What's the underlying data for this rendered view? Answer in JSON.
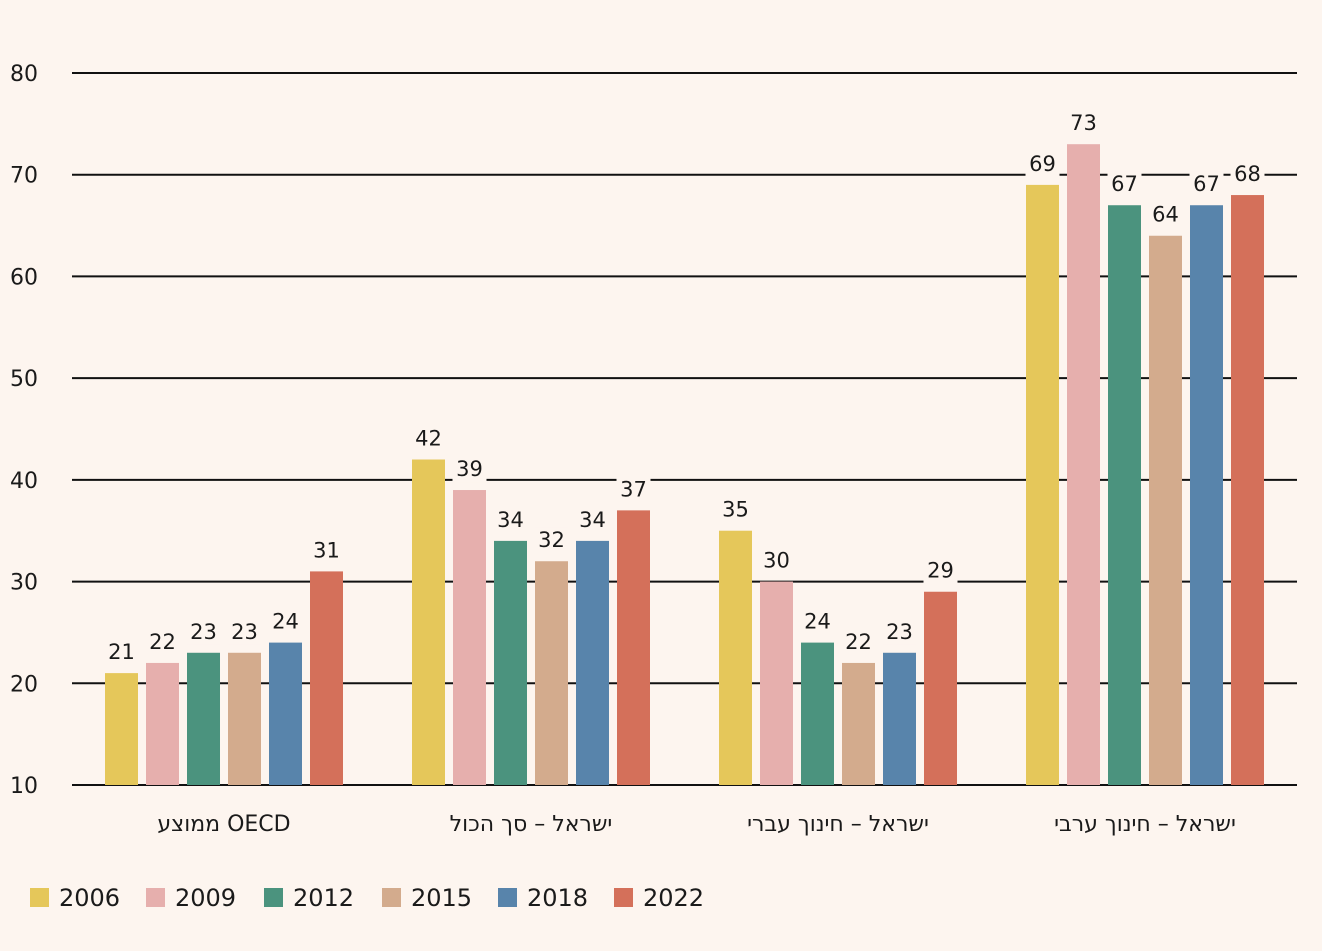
{
  "chart_data": {
    "type": "bar",
    "ylim": [
      10,
      80
    ],
    "yticks": [
      10,
      20,
      30,
      40,
      50,
      60,
      70,
      80
    ],
    "grid": true,
    "legend_position": "bottom-left",
    "categories": [
      "ממוצע OECD",
      "ישראל – סך הכול",
      "ישראל – חינוך עברי",
      "ישראל – חינוך ערבי"
    ],
    "series": [
      {
        "name": "2006",
        "color": "#e5c75a",
        "values": [
          21,
          42,
          35,
          69
        ]
      },
      {
        "name": "2009",
        "color": "#e6afad",
        "values": [
          22,
          39,
          30,
          73
        ]
      },
      {
        "name": "2012",
        "color": "#4b937e",
        "values": [
          23,
          34,
          24,
          67
        ]
      },
      {
        "name": "2015",
        "color": "#d3ab8d",
        "values": [
          23,
          32,
          22,
          64
        ]
      },
      {
        "name": "2018",
        "color": "#5884ab",
        "values": [
          24,
          34,
          23,
          67
        ]
      },
      {
        "name": "2022",
        "color": "#d4705a",
        "values": [
          31,
          37,
          29,
          68
        ]
      }
    ]
  }
}
